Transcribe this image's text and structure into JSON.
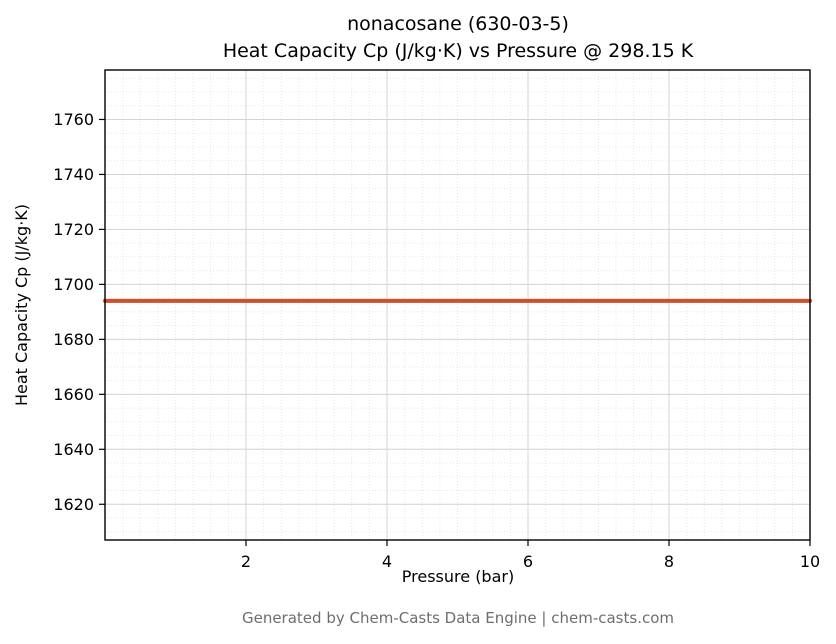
{
  "chart_data": {
    "type": "line",
    "title_line1": "nonacosane (630-03-5)",
    "title_line2": "Heat Capacity Cp (J/kg·K) vs Pressure @ 298.15 K",
    "xlabel": "Pressure (bar)",
    "ylabel": "Heat Capacity Cp (J/kg·K)",
    "xlim": [
      0,
      10
    ],
    "ylim": [
      1607,
      1778
    ],
    "x_major_ticks": [
      2,
      4,
      6,
      8,
      10
    ],
    "y_major_ticks": [
      1620,
      1640,
      1660,
      1680,
      1700,
      1720,
      1740,
      1760
    ],
    "x_minor_step": 0.25,
    "y_minor_step": 5,
    "grid": true,
    "legend_position": "none",
    "series": [
      {
        "name": "Heat Capacity Cp",
        "x": [
          0,
          10
        ],
        "y": [
          1694,
          1694
        ],
        "color": "#d14f28",
        "line_width": 4
      }
    ]
  },
  "footer": {
    "text": "Generated by Chem-Casts Data Engine | chem-casts.com"
  }
}
